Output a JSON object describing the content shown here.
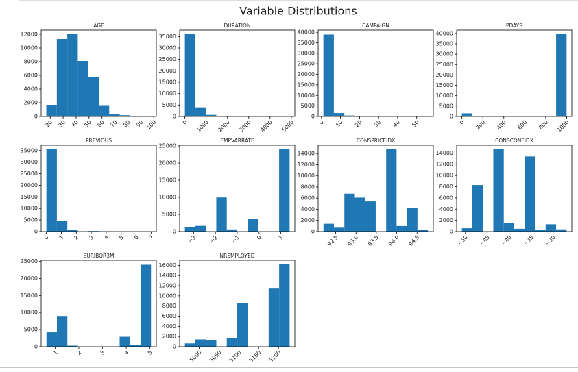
{
  "title": "Variable Distributions",
  "chart_data": [
    {
      "type": "histogram",
      "title": "AGE",
      "color": "#1f77b4",
      "bins": [
        17,
        25.1,
        33.2,
        41.3,
        49.4,
        57.5,
        65.6,
        73.7,
        81.8,
        89.9,
        98
      ],
      "values": [
        1700,
        11300,
        12000,
        8100,
        5800,
        1650,
        300,
        180,
        60,
        10
      ],
      "xlim": [
        13,
        102
      ],
      "xticks": [
        20,
        30,
        40,
        50,
        60,
        70,
        80,
        90,
        100
      ],
      "ylim": [
        0,
        12600
      ],
      "yticks": [
        0,
        2000,
        4000,
        6000,
        8000,
        10000,
        12000
      ]
    },
    {
      "type": "histogram",
      "title": "DURATION",
      "color": "#1f77b4",
      "bins": [
        0,
        491.8,
        983.6,
        1475.4,
        1967.2,
        2459,
        2950.8,
        3442.6,
        3934.4,
        4426.2,
        4918
      ],
      "values": [
        36000,
        4000,
        700,
        150,
        50,
        20,
        10,
        5,
        2,
        1
      ],
      "xlim": [
        -246,
        5164
      ],
      "xticks": [
        0,
        1000,
        2000,
        3000,
        4000,
        5000
      ],
      "ylim": [
        0,
        37800
      ],
      "yticks": [
        0,
        5000,
        10000,
        15000,
        20000,
        25000,
        30000,
        35000
      ]
    },
    {
      "type": "histogram",
      "title": "CAMPAIGN",
      "color": "#1f77b4",
      "bins": [
        1,
        6.5,
        12,
        17.5,
        23,
        28.5,
        34,
        39.5,
        45,
        50.5,
        56
      ],
      "values": [
        38900,
        1600,
        450,
        150,
        60,
        20,
        10,
        5,
        3,
        2
      ],
      "xlim": [
        -1.75,
        58.75
      ],
      "xticks": [
        0,
        10,
        20,
        30,
        40,
        50
      ],
      "ylim": [
        0,
        41000
      ],
      "yticks": [
        0,
        5000,
        10000,
        15000,
        20000,
        25000,
        30000,
        35000,
        40000
      ]
    },
    {
      "type": "histogram",
      "title": "PDAYS",
      "color": "#1f77b4",
      "bins": [
        0,
        99.9,
        199.8,
        299.7,
        399.6,
        499.5,
        599.4,
        699.3,
        799.2,
        899.1,
        999
      ],
      "values": [
        1500,
        0,
        0,
        0,
        0,
        0,
        0,
        0,
        0,
        39650
      ],
      "xlim": [
        -50,
        1049
      ],
      "xticks": [
        0,
        200,
        400,
        600,
        800,
        1000
      ],
      "ylim": [
        0,
        41600
      ],
      "yticks": [
        0,
        5000,
        10000,
        15000,
        20000,
        25000,
        30000,
        35000,
        40000
      ]
    },
    {
      "type": "histogram",
      "title": "PREVIOUS",
      "color": "#1f77b4",
      "bins": [
        0,
        0.7,
        1.4,
        2.1,
        2.8,
        3.5,
        4.2,
        4.9,
        5.6,
        6.3,
        7
      ],
      "values": [
        35560,
        4560,
        750,
        0,
        220,
        70,
        0,
        18,
        5,
        1
      ],
      "xlim": [
        -0.35,
        7.35
      ],
      "xticks": [
        0,
        1,
        2,
        3,
        4,
        5,
        6,
        7
      ],
      "ylim": [
        0,
        37300
      ],
      "yticks": [
        0,
        5000,
        10000,
        15000,
        20000,
        25000,
        30000,
        35000
      ]
    },
    {
      "type": "histogram",
      "title": "EMPVARRATE",
      "color": "#1f77b4",
      "bins": [
        -3.4,
        -2.92,
        -2.44,
        -1.96,
        -1.48,
        -1,
        -0.52,
        -0.04,
        0.44,
        0.92,
        1.4
      ],
      "values": [
        1243,
        1663,
        0,
        9957,
        635,
        0,
        3693,
        0,
        0,
        23997
      ],
      "xlim": [
        -3.64,
        1.64
      ],
      "xticks": [
        {
          "value": -3,
          "label": "−3"
        },
        {
          "value": -2,
          "label": "−2"
        },
        {
          "value": -1,
          "label": "−1"
        },
        0,
        1
      ],
      "ylim": [
        0,
        25200
      ],
      "yticks": [
        0,
        5000,
        10000,
        15000,
        20000,
        25000
      ]
    },
    {
      "type": "histogram",
      "title": "CONSPRICEIDX",
      "color": "#1f77b4",
      "bins": [
        92.201,
        92.458,
        92.714,
        92.971,
        93.227,
        93.484,
        93.741,
        93.997,
        94.254,
        94.51,
        94.767
      ],
      "values": [
        1400,
        700,
        6800,
        6100,
        5400,
        0,
        14800,
        1000,
        4300,
        300
      ],
      "xlim": [
        92.07,
        94.9
      ],
      "xticks": [
        92.5,
        {
          "value": 93,
          "label": "93.0"
        },
        93.5,
        {
          "value": 94,
          "label": "94.0"
        },
        94.5
      ],
      "ylim": [
        0,
        15500
      ],
      "yticks": [
        0,
        2000,
        4000,
        6000,
        8000,
        10000,
        12000,
        14000
      ]
    },
    {
      "type": "histogram",
      "title": "CONSCONFIDX",
      "color": "#1f77b4",
      "bins": [
        -50.8,
        -48.41,
        -46.02,
        -43.63,
        -41.24,
        -38.85,
        -36.46,
        -34.07,
        -31.68,
        -29.29,
        -26.9
      ],
      "values": [
        600,
        8300,
        0,
        14700,
        1500,
        500,
        13400,
        300,
        1300,
        400
      ],
      "xlim": [
        -52,
        -25.7
      ],
      "xticks": [
        {
          "value": -50,
          "label": "−50"
        },
        {
          "value": -45,
          "label": "−45"
        },
        {
          "value": -40,
          "label": "−40"
        },
        {
          "value": -35,
          "label": "−35"
        },
        {
          "value": -30,
          "label": "−30"
        }
      ],
      "ylim": [
        0,
        15400
      ],
      "yticks": [
        0,
        2000,
        4000,
        6000,
        8000,
        10000,
        12000,
        14000
      ]
    },
    {
      "type": "histogram",
      "title": "EURIBOR3M",
      "color": "#1f77b4",
      "bins": [
        0.634,
        1.075,
        1.516,
        1.957,
        2.398,
        2.84,
        3.281,
        3.722,
        4.163,
        4.604,
        5.045
      ],
      "values": [
        4200,
        9000,
        300,
        0,
        0,
        0,
        0,
        2900,
        600,
        24000
      ],
      "xlim": [
        0.41,
        5.27
      ],
      "xticks": [
        1,
        2,
        3,
        4,
        5
      ],
      "ylim": [
        0,
        25300
      ],
      "yticks": [
        0,
        5000,
        10000,
        15000,
        20000,
        25000
      ]
    },
    {
      "type": "histogram",
      "title": "NREMPLOYED",
      "color": "#1f77b4",
      "bins": [
        4963.6,
        4990,
        5016.5,
        5043,
        5069.4,
        5095.9,
        5122.3,
        5148.8,
        5175.2,
        5201.7,
        5228.1
      ],
      "values": [
        635,
        1423,
        1243,
        0,
        1663,
        8534,
        0,
        0,
        11446,
        16234
      ],
      "xlim": [
        4950.4,
        5241.3
      ],
      "xticks": [
        5000,
        5050,
        5100,
        5150,
        5200
      ],
      "ylim": [
        0,
        17000
      ],
      "yticks": [
        0,
        2000,
        4000,
        6000,
        8000,
        10000,
        12000,
        14000,
        16000
      ]
    }
  ]
}
